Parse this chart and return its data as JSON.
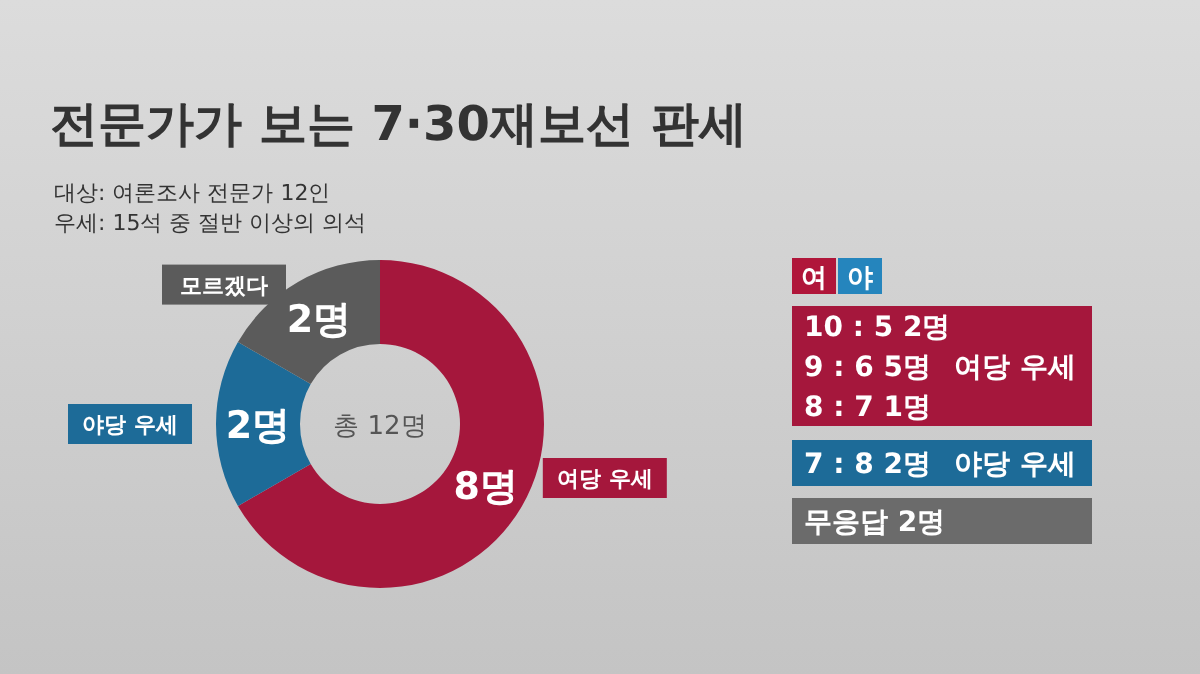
{
  "chart_data": [
    {
      "type": "donut",
      "title": "전문가가 보는 7·30재보선 판세",
      "subtitle": "대상: 여론조사 전문가 12인",
      "categories": [
        "여당 우세",
        "야당 우세",
        "모르겠다"
      ],
      "values": [
        8,
        2,
        2
      ],
      "colors": [
        "#a5173c",
        "#1d6b98",
        "#5b5b5b"
      ],
      "value_labels": [
        "8명",
        "2명",
        "2명"
      ],
      "annotations": [
        "우세: 15석 중 절반 이상의 의석",
        "총 12명"
      ]
    },
    {
      "type": "other",
      "annotations": [
        "여",
        "야",
        "10 : 5  2명",
        "9 : 6  5명",
        "8 : 7  1명",
        "여당 우세",
        "7 : 8  2명",
        "야당 우세",
        "무응답  2명"
      ]
    }
  ]
}
